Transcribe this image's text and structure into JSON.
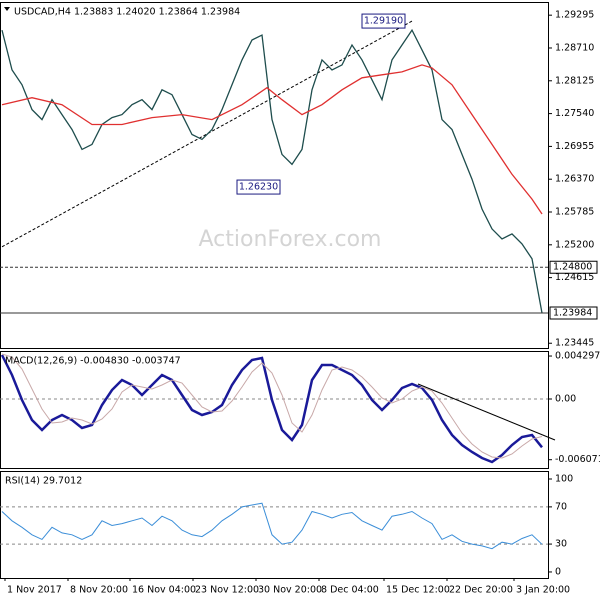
{
  "chart_data": [
    {
      "type": "line",
      "title": "USDCAD,H4  1.23883 1.24020 1.23864 1.23984",
      "watermark": "ActionForex.com",
      "x": [
        0,
        1,
        2,
        3,
        4,
        5,
        6,
        7,
        8,
        9,
        10,
        11,
        12,
        13,
        14,
        15,
        16,
        17,
        18,
        19,
        20,
        21,
        22,
        23,
        24,
        25,
        26,
        27,
        28,
        29,
        30,
        31,
        32,
        33,
        34,
        35,
        36,
        37,
        38,
        39,
        40,
        41,
        42,
        43,
        44,
        45,
        46,
        47,
        48,
        49,
        50,
        51,
        52,
        53,
        54
      ],
      "xlim": [
        -0.2,
        54.6
      ],
      "ylim": [
        1.2336,
        1.2953
      ],
      "yticks": [
        1.29295,
        {
          "value": 1.2871,
          "label": "1.28710"
        },
        1.28125,
        {
          "value": 1.2754,
          "label": "1.27540"
        },
        1.26955,
        {
          "value": 1.2637,
          "label": "1.26370"
        },
        1.25785,
        {
          "value": 1.252,
          "label": "1.25200"
        },
        1.24615,
        1.23445
      ],
      "series": [
        {
          "name": "USDCAD",
          "color": "#1e4d4d",
          "values": [
            1.29029,
            1.2832,
            1.28054,
            1.27611,
            1.27433,
            1.27788,
            1.27522,
            1.27256,
            1.26901,
            1.2699,
            1.27345,
            1.27469,
            1.27522,
            1.27699,
            1.27788,
            1.27611,
            1.27965,
            1.27877,
            1.27522,
            1.27167,
            1.27079,
            1.27256,
            1.27611,
            1.28054,
            1.28497,
            1.28852,
            1.2894,
            1.27433,
            1.26813,
            1.26636,
            1.26901,
            1.27965,
            1.28497,
            1.2832,
            1.28409,
            1.28763,
            1.28497,
            1.28143,
            1.27788,
            1.28497,
            1.28763,
            1.29029,
            1.28675,
            1.2832,
            1.27433,
            1.27256,
            1.26813,
            1.2637,
            1.25838,
            1.25483,
            1.25306,
            1.25394,
            1.25217,
            1.24951,
            1.23984
          ]
        },
        {
          "name": "MA",
          "color": "#e03030",
          "x": [
            0,
            3,
            6,
            9,
            12,
            15,
            18,
            21,
            24,
            26.5,
            28,
            30,
            32,
            34,
            36,
            38,
            40,
            42,
            43,
            45,
            47,
            49,
            51,
            53,
            54
          ],
          "values": [
            1.27699,
            1.27823,
            1.27699,
            1.27345,
            1.27345,
            1.27469,
            1.27522,
            1.27433,
            1.27699,
            1.28001,
            1.27788,
            1.27522,
            1.27699,
            1.27965,
            1.28178,
            1.28231,
            1.28284,
            1.28409,
            1.28355,
            1.28054,
            1.27522,
            1.2699,
            1.26458,
            1.26015,
            1.25749
          ]
        }
      ],
      "hlines": [
        {
          "value": 1.248,
          "label": "1.24800",
          "style": "dashed"
        },
        {
          "value": 1.23984,
          "label": "1.23984",
          "style": "solid"
        }
      ],
      "annotations": [
        {
          "label": "1.29190",
          "value": 1.2919,
          "x": 41
        },
        {
          "label": "1.26230",
          "value": 1.2623,
          "x": 28.5
        }
      ],
      "trendline": {
        "x": [
          0,
          41
        ],
        "values": [
          1.25164,
          1.2919
        ],
        "style": "dashed"
      }
    },
    {
      "type": "line",
      "title": "MACD(12,26,9) -0.004830 -0.003747",
      "x": [
        0,
        1,
        2,
        3,
        4,
        5,
        6,
        7,
        8,
        9,
        10,
        11,
        12,
        13,
        14,
        15,
        16,
        17,
        18,
        19,
        20,
        21,
        22,
        23,
        24,
        25,
        26,
        27,
        28,
        29,
        30,
        31,
        32,
        33,
        34,
        35,
        36,
        37,
        38,
        39,
        40,
        41,
        42,
        43,
        44,
        45,
        46,
        47,
        48,
        49,
        50,
        51,
        52,
        53,
        54
      ],
      "xlim": [
        -0.2,
        54.6
      ],
      "ylim": [
        -0.0069,
        0.0048
      ],
      "yticks": [
        0.004297,
        {
          "value": 0,
          "label": "0.00"
        },
        -0.006071
      ],
      "levels": [
        0
      ],
      "series": [
        {
          "name": "MACD",
          "color": "#1a1a99",
          "width": 2.5,
          "values": [
            0.0044,
            0.0024,
            -0.0001,
            -0.0021,
            -0.0031,
            -0.0021,
            -0.0016,
            -0.0021,
            -0.0029,
            -0.0026,
            -0.0006,
            0.0009,
            0.0019,
            0.0014,
            0.0004,
            0.0014,
            0.0024,
            0.0019,
            0.0004,
            -0.0011,
            -0.0016,
            -0.0013,
            -0.0006,
            0.0014,
            0.0029,
            0.0039,
            0.0041,
            -0.0001,
            -0.0031,
            -0.0041,
            -0.0026,
            0.0019,
            0.0034,
            0.0034,
            0.0029,
            0.0024,
            0.0014,
            -0.0001,
            -0.0011,
            -0.0001,
            0.0011,
            0.0015,
            0.0011,
            -0.0001,
            -0.0021,
            -0.0036,
            -0.0046,
            -0.0053,
            -0.0059,
            -0.0063,
            -0.0056,
            -0.0046,
            -0.0038,
            -0.0036,
            -0.00483
          ]
        },
        {
          "name": "Signal",
          "color": "#c8a8a8",
          "width": 1,
          "values": [
            0.0045,
            0.0042,
            0.003,
            0.001,
            -0.001,
            -0.0024,
            -0.0023,
            -0.0019,
            -0.0021,
            -0.0025,
            -0.002,
            -0.001,
            0.0007,
            0.0014,
            0.0012,
            0.001,
            0.0014,
            0.0019,
            0.0016,
            0.0004,
            -0.0008,
            -0.0013,
            -0.0012,
            -0.0002,
            0.0012,
            0.0027,
            0.0036,
            0.0026,
            0.0004,
            -0.0024,
            -0.0033,
            -0.0016,
            0.0009,
            0.0029,
            0.0032,
            0.0029,
            0.0022,
            0.0012,
            0.0001,
            -0.0004,
            0,
            0.0008,
            0.0012,
            0.0008,
            -0.0004,
            -0.0019,
            -0.0034,
            -0.0045,
            -0.0053,
            -0.0058,
            -0.0059,
            -0.0055,
            -0.0047,
            -0.004,
            -0.003747
          ]
        }
      ],
      "trendline": {
        "x": [
          41.6,
          55.3
        ],
        "values": [
          0.0015,
          -0.0041
        ],
        "style": "solid"
      }
    },
    {
      "type": "line",
      "title": "RSI(14) 29.7012",
      "x": [
        0,
        1,
        2,
        3,
        4,
        5,
        6,
        7,
        8,
        9,
        10,
        11,
        12,
        13,
        14,
        15,
        16,
        17,
        18,
        19,
        20,
        21,
        22,
        23,
        24,
        25,
        26,
        27,
        28,
        29,
        30,
        31,
        32,
        33,
        34,
        35,
        36,
        37,
        38,
        39,
        40,
        41,
        42,
        43,
        44,
        45,
        46,
        47,
        48,
        49,
        50,
        51,
        52,
        53,
        54
      ],
      "xlim": [
        -0.2,
        54.6
      ],
      "ylim": [
        -6.5,
        108.6
      ],
      "yticks": [
        100,
        70,
        30,
        0
      ],
      "levels": [
        70,
        30
      ],
      "series": [
        {
          "name": "RSI",
          "color": "#3b8ed8",
          "width": 1,
          "values": [
            65,
            55,
            48,
            40,
            35,
            48,
            42,
            40,
            35,
            40,
            55,
            50,
            52,
            55,
            58,
            50,
            60,
            55,
            45,
            40,
            38,
            45,
            55,
            62,
            70,
            72,
            74,
            40,
            30,
            32,
            45,
            65,
            62,
            58,
            62,
            64,
            55,
            50,
            45,
            60,
            62,
            65,
            58,
            52,
            35,
            40,
            33,
            30,
            28,
            25,
            32,
            30,
            36,
            40,
            29.7012
          ]
        }
      ],
      "xticks": [
        {
          "value": 0.3,
          "label": "1 Nov 2017"
        },
        {
          "value": 6.6,
          "label": "8 Nov 20:00"
        },
        {
          "value": 12.8,
          "label": "16 Nov 04:00"
        },
        {
          "value": 19.1,
          "label": "23 Nov 12:00"
        },
        {
          "value": 25.4,
          "label": "30 Nov 20:00"
        },
        {
          "value": 31.7,
          "label": "8 Dec 04:00"
        },
        {
          "value": 38.2,
          "label": "15 Dec 12:00"
        },
        {
          "value": 44.5,
          "label": "22 Dec 20:00"
        },
        {
          "value": 51.2,
          "label": "3 Jan 20:00"
        }
      ]
    }
  ]
}
